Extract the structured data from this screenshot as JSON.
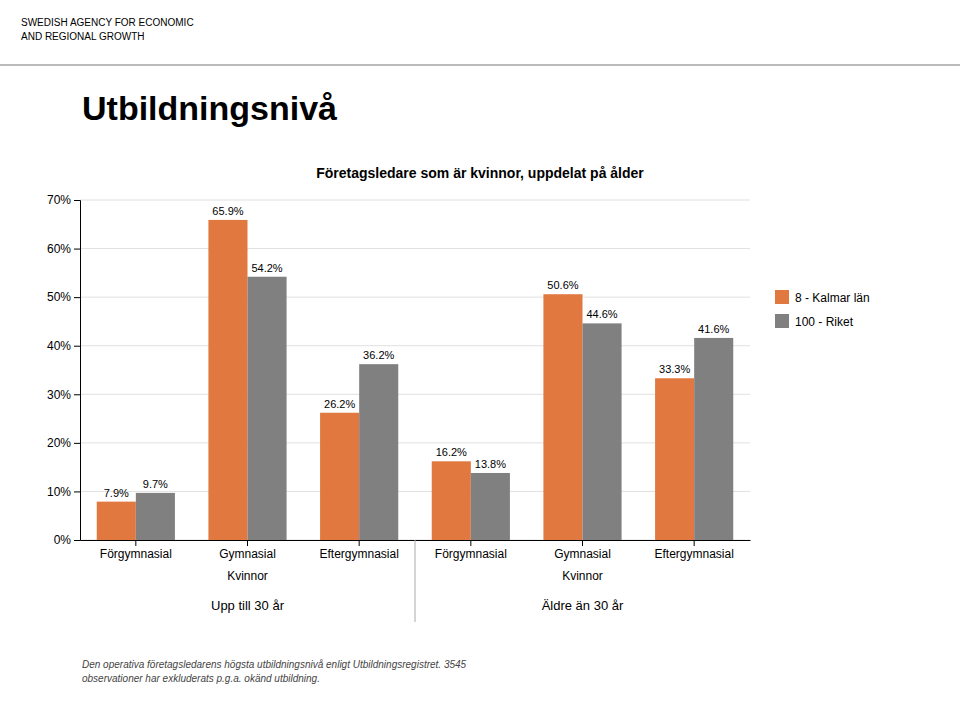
{
  "chart_data": {
    "type": "bar",
    "title": "Utbildningsnivå",
    "subtitle": "Företagsledare som är kvinnor, uppdelat på ålder",
    "header": "SWEDISH AGENCY FOR ECONOMIC\nAND REGIONAL GROWTH",
    "footnote": "Den operativa företagsledarens högsta utbildningsnivå enligt Utbildningsregistret. 3545\nobservationer har exkluderats p.g.a. okänd utbildning.",
    "categories": [
      "Förgymnasial",
      "Gymnasial",
      "Eftergymnasial",
      "Förgymnasial",
      "Gymnasial",
      "Eftergymnasial"
    ],
    "category_notes": [
      null,
      "Kvinnor",
      null,
      null,
      "Kvinnor",
      null
    ],
    "sections": [
      0,
      0,
      0,
      1,
      1,
      1
    ],
    "section_labels": [
      "Upp till 30 år",
      "Äldre än 30 år"
    ],
    "series": [
      {
        "name": "8 - Kalmar län",
        "color": "#e07840",
        "values": [
          7.9,
          65.9,
          26.2,
          16.2,
          50.6,
          33.3
        ],
        "value_labels": [
          "7.9%",
          "65.9%",
          "26.2%",
          "16.2%",
          "50.6%",
          "33.3%"
        ]
      },
      {
        "name": "100 - Riket",
        "color": "#808080",
        "values": [
          9.7,
          54.2,
          36.2,
          13.8,
          44.6,
          41.6
        ],
        "value_labels": [
          "9.7%",
          "54.2%",
          "36.2%",
          "13.8%",
          "44.6%",
          "41.6%"
        ]
      }
    ],
    "ylim": [
      0,
      70
    ],
    "yticks": [
      {
        "value": 0,
        "label": "0%"
      },
      {
        "value": 10,
        "label": "10%"
      },
      {
        "value": 20,
        "label": "20%"
      },
      {
        "value": 30,
        "label": "30%"
      },
      {
        "value": 40,
        "label": "40%"
      },
      {
        "value": 50,
        "label": "50%"
      },
      {
        "value": 60,
        "label": "60%"
      },
      {
        "value": 70,
        "label": "70%"
      }
    ],
    "grid": true,
    "data_labels": true,
    "legend": "right"
  }
}
